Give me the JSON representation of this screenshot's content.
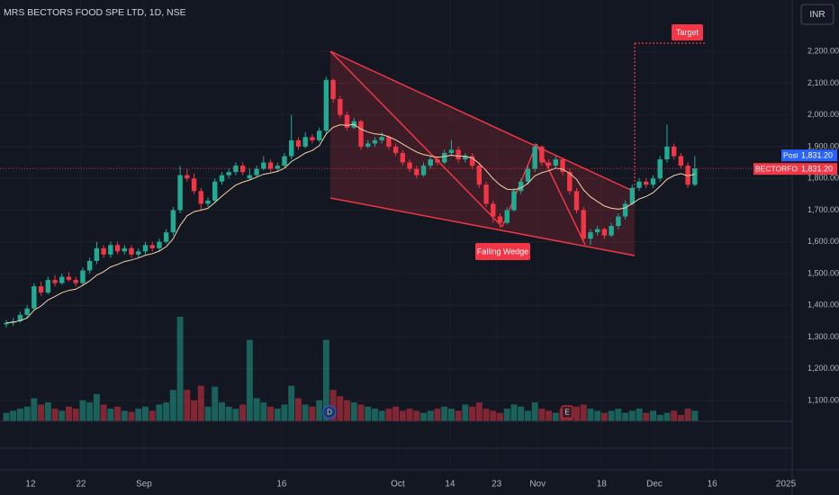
{
  "chart_data": {
    "type": "candlestick",
    "title": "MRS BECTORS FOOD SPE LTD, 1D, NSE",
    "currency": "INR",
    "symbol": "BECTORFOOD",
    "post_label": "Post",
    "last_price_label": "1,831.20",
    "annotations": [
      "Falling Wedge",
      "Target"
    ],
    "events": [
      "D",
      "E"
    ],
    "up_color": "#22ab94",
    "down_color": "#f23645",
    "ma_color": "#f5d3a6",
    "grid": true,
    "ylim": [
      1035,
      2362
    ],
    "xlim": [
      -0.9,
      113
    ],
    "yticks": [
      {
        "value": 1100,
        "label": "1,100.00"
      },
      {
        "value": 1200,
        "label": "1,200.00"
      },
      {
        "value": 1300,
        "label": "1,300.00"
      },
      {
        "value": 1400,
        "label": "1,400.00"
      },
      {
        "value": 1500,
        "label": "1,500.00"
      },
      {
        "value": 1600,
        "label": "1,600.00"
      },
      {
        "value": 1700,
        "label": "1,700.00"
      },
      {
        "value": 1800,
        "label": "1,800.00"
      },
      {
        "value": 1900,
        "label": "1,900.00"
      },
      {
        "value": 2000,
        "label": "2,000.00"
      },
      {
        "value": 2100,
        "label": "2,100.00"
      },
      {
        "value": 2200,
        "label": "2,200.00"
      }
    ],
    "xticks": [
      {
        "value": 3.5,
        "label": "12"
      },
      {
        "value": 10.75,
        "label": "22"
      },
      {
        "value": 19.8,
        "label": "Sep"
      },
      {
        "value": 39.6,
        "label": "16"
      },
      {
        "value": 56.3,
        "label": "Oct"
      },
      {
        "value": 63.8,
        "label": "14"
      },
      {
        "value": 70.5,
        "label": "23"
      },
      {
        "value": 76.4,
        "label": "Nov"
      },
      {
        "value": 85.6,
        "label": "18"
      },
      {
        "value": 93.2,
        "label": "Dec"
      },
      {
        "value": 101.5,
        "label": "16"
      },
      {
        "value": 112.1,
        "label": "2025"
      }
    ],
    "ohlc": [
      [
        1340,
        1355,
        1330,
        1345
      ],
      [
        1345,
        1360,
        1335,
        1350
      ],
      [
        1350,
        1380,
        1345,
        1370
      ],
      [
        1370,
        1400,
        1360,
        1390
      ],
      [
        1390,
        1470,
        1385,
        1460
      ],
      [
        1460,
        1475,
        1430,
        1440
      ],
      [
        1440,
        1490,
        1435,
        1480
      ],
      [
        1480,
        1495,
        1460,
        1470
      ],
      [
        1470,
        1500,
        1465,
        1490
      ],
      [
        1490,
        1505,
        1475,
        1480
      ],
      [
        1480,
        1490,
        1460,
        1470
      ],
      [
        1470,
        1520,
        1465,
        1510
      ],
      [
        1510,
        1550,
        1500,
        1540
      ],
      [
        1540,
        1600,
        1530,
        1580
      ],
      [
        1580,
        1590,
        1550,
        1560
      ],
      [
        1560,
        1600,
        1550,
        1590
      ],
      [
        1590,
        1600,
        1560,
        1570
      ],
      [
        1570,
        1590,
        1560,
        1580
      ],
      [
        1580,
        1590,
        1550,
        1560
      ],
      [
        1560,
        1580,
        1550,
        1570
      ],
      [
        1570,
        1600,
        1560,
        1590
      ],
      [
        1590,
        1600,
        1570,
        1580
      ],
      [
        1580,
        1610,
        1570,
        1600
      ],
      [
        1600,
        1640,
        1595,
        1630
      ],
      [
        1630,
        1710,
        1620,
        1700
      ],
      [
        1700,
        1840,
        1690,
        1810
      ],
      [
        1810,
        1830,
        1790,
        1800
      ],
      [
        1800,
        1815,
        1750,
        1760
      ],
      [
        1760,
        1770,
        1700,
        1720
      ],
      [
        1720,
        1740,
        1710,
        1730
      ],
      [
        1730,
        1800,
        1725,
        1790
      ],
      [
        1790,
        1820,
        1780,
        1810
      ],
      [
        1810,
        1830,
        1800,
        1820
      ],
      [
        1820,
        1850,
        1810,
        1840
      ],
      [
        1840,
        1850,
        1810,
        1820
      ],
      [
        1800,
        1830,
        1795,
        1810
      ],
      [
        1810,
        1840,
        1805,
        1830
      ],
      [
        1830,
        1870,
        1825,
        1850
      ],
      [
        1850,
        1860,
        1820,
        1830
      ],
      [
        1830,
        1850,
        1820,
        1840
      ],
      [
        1840,
        1880,
        1830,
        1870
      ],
      [
        1870,
        2000,
        1860,
        1920
      ],
      [
        1920,
        1930,
        1890,
        1900
      ],
      [
        1900,
        1945,
        1895,
        1930
      ],
      [
        1930,
        1940,
        1910,
        1920
      ],
      [
        1920,
        1960,
        1915,
        1950
      ],
      [
        1950,
        2120,
        1940,
        2110
      ],
      [
        2110,
        2115,
        2040,
        2050
      ],
      [
        2050,
        2060,
        1990,
        2000
      ],
      [
        2000,
        2010,
        1950,
        1960
      ],
      [
        1960,
        1990,
        1955,
        1980
      ],
      [
        1980,
        1985,
        1890,
        1900
      ],
      [
        1900,
        1920,
        1895,
        1910
      ],
      [
        1910,
        1930,
        1900,
        1920
      ],
      [
        1920,
        1945,
        1910,
        1930
      ],
      [
        1930,
        1935,
        1890,
        1900
      ],
      [
        1900,
        1910,
        1870,
        1880
      ],
      [
        1880,
        1890,
        1840,
        1850
      ],
      [
        1850,
        1860,
        1820,
        1830
      ],
      [
        1830,
        1840,
        1800,
        1810
      ],
      [
        1810,
        1850,
        1805,
        1840
      ],
      [
        1840,
        1870,
        1830,
        1860
      ],
      [
        1860,
        1870,
        1840,
        1850
      ],
      [
        1850,
        1890,
        1845,
        1880
      ],
      [
        1880,
        1920,
        1870,
        1890
      ],
      [
        1890,
        1900,
        1850,
        1860
      ],
      [
        1860,
        1880,
        1850,
        1870
      ],
      [
        1870,
        1880,
        1830,
        1840
      ],
      [
        1840,
        1850,
        1770,
        1780
      ],
      [
        1780,
        1790,
        1710,
        1720
      ],
      [
        1720,
        1730,
        1660,
        1680
      ],
      [
        1680,
        1690,
        1645,
        1660
      ],
      [
        1660,
        1710,
        1655,
        1700
      ],
      [
        1700,
        1770,
        1695,
        1760
      ],
      [
        1760,
        1800,
        1750,
        1790
      ],
      [
        1790,
        1840,
        1780,
        1830
      ],
      [
        1830,
        1910,
        1820,
        1900
      ],
      [
        1900,
        1905,
        1840,
        1850
      ],
      [
        1850,
        1860,
        1830,
        1840
      ],
      [
        1840,
        1870,
        1830,
        1860
      ],
      [
        1860,
        1865,
        1810,
        1820
      ],
      [
        1820,
        1830,
        1750,
        1760
      ],
      [
        1760,
        1770,
        1690,
        1700
      ],
      [
        1700,
        1710,
        1600,
        1610
      ],
      [
        1610,
        1640,
        1590,
        1630
      ],
      [
        1630,
        1650,
        1620,
        1640
      ],
      [
        1640,
        1645,
        1610,
        1620
      ],
      [
        1620,
        1660,
        1615,
        1650
      ],
      [
        1650,
        1690,
        1640,
        1680
      ],
      [
        1680,
        1730,
        1670,
        1720
      ],
      [
        1720,
        1780,
        1715,
        1770
      ],
      [
        1770,
        1800,
        1760,
        1790
      ],
      [
        1790,
        1800,
        1770,
        1780
      ],
      [
        1780,
        1810,
        1770,
        1800
      ],
      [
        1800,
        1870,
        1790,
        1860
      ],
      [
        1860,
        1970,
        1850,
        1900
      ],
      [
        1900,
        1910,
        1860,
        1870
      ],
      [
        1870,
        1880,
        1830,
        1840
      ],
      [
        1840,
        1850,
        1770,
        1780
      ],
      [
        1780,
        1870,
        1775,
        1831.2
      ]
    ],
    "ma": [
      1345,
      1347,
      1352,
      1360,
      1385,
      1398,
      1417,
      1428,
      1440,
      1447,
      1451,
      1463,
      1477,
      1495,
      1506,
      1521,
      1529,
      1538,
      1543,
      1549,
      1558,
      1563,
      1571,
      1585,
      1610,
      1652,
      1682,
      1695,
      1700,
      1706,
      1724,
      1744,
      1762,
      1779,
      1788,
      1795,
      1804,
      1813,
      1817,
      1822,
      1832,
      1853,
      1866,
      1880,
      1888,
      1903,
      1940,
      1961,
      1969,
      1967,
      1970,
      1955,
      1946,
      1940,
      1938,
      1931,
      1921,
      1908,
      1895,
      1883,
      1875,
      1871,
      1866,
      1869,
      1873,
      1870,
      1870,
      1864,
      1847,
      1824,
      1799,
      1779,
      1766,
      1764,
      1770,
      1784,
      1808,
      1818,
      1824,
      1832,
      1829,
      1816,
      1797,
      1764,
      1742,
      1727,
      1713,
      1706,
      1703,
      1707,
      1721,
      1735,
      1743,
      1755,
      1775,
      1797,
      1809,
      1815,
      1808,
      1813
    ],
    "volume": [
      8,
      10,
      12,
      14,
      22,
      16,
      18,
      12,
      10,
      14,
      12,
      20,
      18,
      26,
      16,
      12,
      14,
      10,
      9,
      12,
      14,
      10,
      16,
      18,
      30,
      100,
      30,
      20,
      34,
      14,
      33,
      18,
      14,
      12,
      16,
      78,
      22,
      18,
      14,
      12,
      16,
      34,
      22,
      16,
      14,
      20,
      78,
      30,
      24,
      20,
      18,
      16,
      14,
      12,
      10,
      12,
      14,
      10,
      12,
      10,
      8,
      10,
      12,
      14,
      12,
      10,
      16,
      14,
      18,
      12,
      10,
      8,
      12,
      16,
      14,
      10,
      18,
      12,
      10,
      8,
      12,
      10,
      14,
      16,
      12,
      10,
      8,
      10,
      12,
      8,
      10,
      12,
      8,
      10,
      6,
      8,
      10,
      6,
      12,
      10
    ]
  }
}
